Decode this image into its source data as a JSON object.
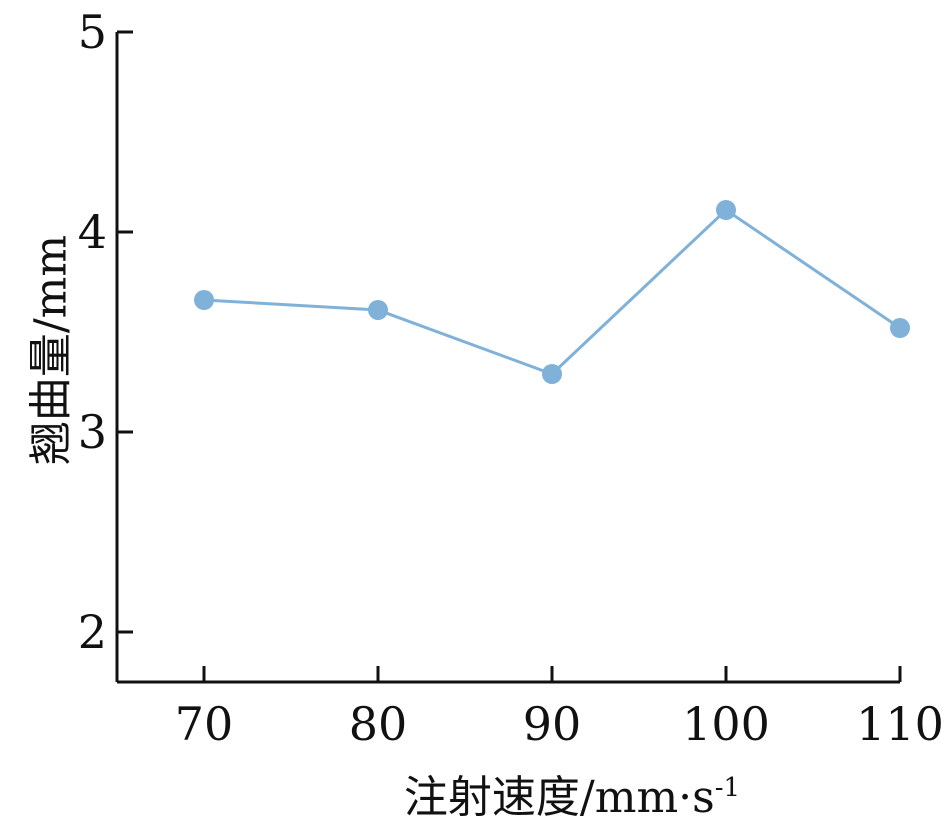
{
  "chart_data": {
    "type": "line",
    "title": "",
    "xlabel": "注射速度/mm·s",
    "xlabel_superscript": "-1",
    "ylabel": "翘曲量/mm",
    "x": [
      70,
      80,
      90,
      100,
      110
    ],
    "series": [
      {
        "values": [
          3.66,
          3.61,
          3.29,
          4.11,
          3.52
        ],
        "color": "#7fb1d9"
      }
    ],
    "xticks": [
      "70",
      "80",
      "90",
      "100",
      "110"
    ],
    "yticks": [
      "2",
      "3",
      "4",
      "5"
    ],
    "xlim": [
      65,
      110
    ],
    "ylim": [
      1.75,
      5
    ],
    "grid": false,
    "legend": "none"
  }
}
